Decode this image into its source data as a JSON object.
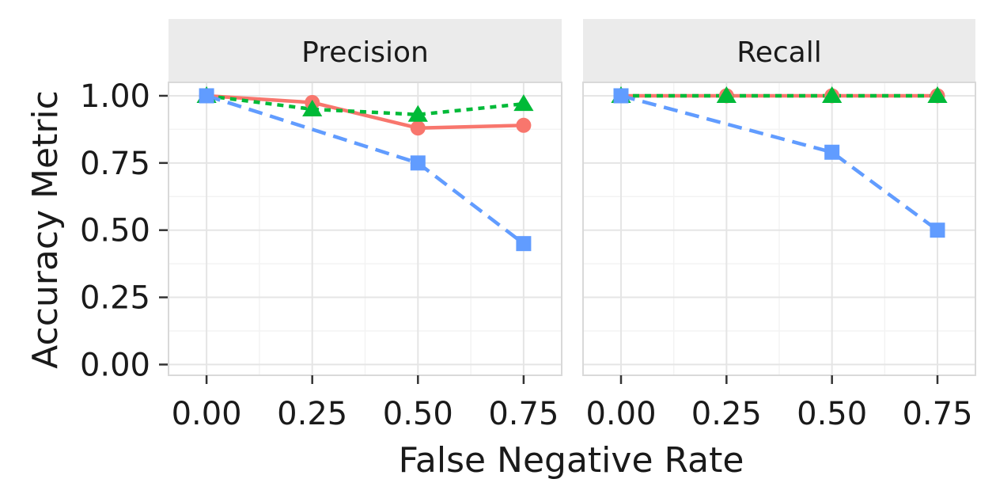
{
  "chart_data": {
    "type": "line",
    "xlabel": "False Negative Rate",
    "ylabel": "Accuracy Metric",
    "x": [
      0.0,
      0.25,
      0.5,
      0.75
    ],
    "x_ticks": [
      "0.00",
      "0.25",
      "0.50",
      "0.75"
    ],
    "y_ticks": [
      "0.00",
      "0.25",
      "0.50",
      "0.75",
      "1.00"
    ],
    "xlim": [
      -0.09,
      0.84
    ],
    "ylim": [
      -0.04,
      1.05
    ],
    "grid": true,
    "legend": "none",
    "facets": [
      {
        "title": "Precision",
        "series": [
          {
            "color": "#F8766D",
            "linetype": "solid",
            "marker": "circle",
            "values": [
              1.0,
              0.975,
              0.88,
              0.89
            ]
          },
          {
            "color": "#00BA38",
            "linetype": "dotted",
            "marker": "triangle",
            "values": [
              1.0,
              0.95,
              0.93,
              0.97
            ]
          },
          {
            "color": "#619CFF",
            "linetype": "dashed",
            "marker": "square",
            "values": [
              1.0,
              null,
              0.75,
              0.45
            ]
          }
        ]
      },
      {
        "title": "Recall",
        "series": [
          {
            "color": "#F8766D",
            "linetype": "solid",
            "marker": "circle",
            "values": [
              1.0,
              1.0,
              1.0,
              1.0
            ]
          },
          {
            "color": "#00BA38",
            "linetype": "dotted",
            "marker": "triangle",
            "values": [
              1.0,
              1.0,
              1.0,
              1.0
            ]
          },
          {
            "color": "#619CFF",
            "linetype": "dashed",
            "marker": "square",
            "values": [
              1.0,
              null,
              0.79,
              0.5
            ]
          }
        ]
      }
    ]
  }
}
